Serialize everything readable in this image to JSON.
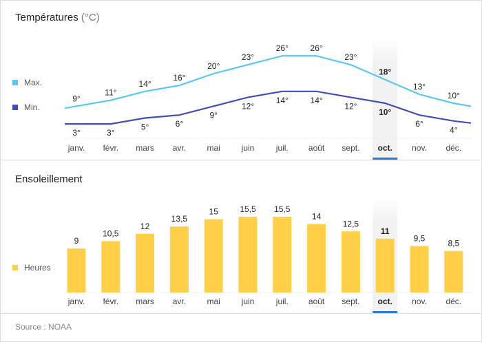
{
  "chart_data": [
    {
      "type": "line",
      "title": "Températures",
      "title_unit": "(°C)",
      "categories": [
        "janv.",
        "févr.",
        "mars",
        "avr.",
        "mai",
        "juin",
        "juil.",
        "août",
        "sept.",
        "oct.",
        "nov.",
        "déc."
      ],
      "highlighted": "oct.",
      "series": [
        {
          "name": "Max.",
          "color": "#5BC5F5",
          "values": [
            9,
            11,
            14,
            16,
            20,
            23,
            26,
            26,
            23,
            18,
            13,
            10
          ]
        },
        {
          "name": "Min.",
          "color": "#3F4FB5",
          "values": [
            3,
            3,
            5,
            6,
            9,
            12,
            14,
            14,
            12,
            10,
            6,
            4
          ]
        }
      ],
      "value_suffix": "°"
    },
    {
      "type": "bar",
      "title": "Ensoleillement",
      "categories": [
        "janv.",
        "févr.",
        "mars",
        "avr.",
        "mai",
        "juin",
        "juil.",
        "août",
        "sept.",
        "oct.",
        "nov.",
        "déc."
      ],
      "highlighted": "oct.",
      "series": [
        {
          "name": "Heures",
          "color": "#FFCF48",
          "values": [
            "9",
            "10,5",
            "12",
            "13,5",
            "15",
            "15,5",
            "15,5",
            "14",
            "12,5",
            "11",
            "9,5",
            "8,5"
          ]
        }
      ]
    }
  ],
  "source": "Source : NOAA",
  "accent": "#2A7AD8"
}
